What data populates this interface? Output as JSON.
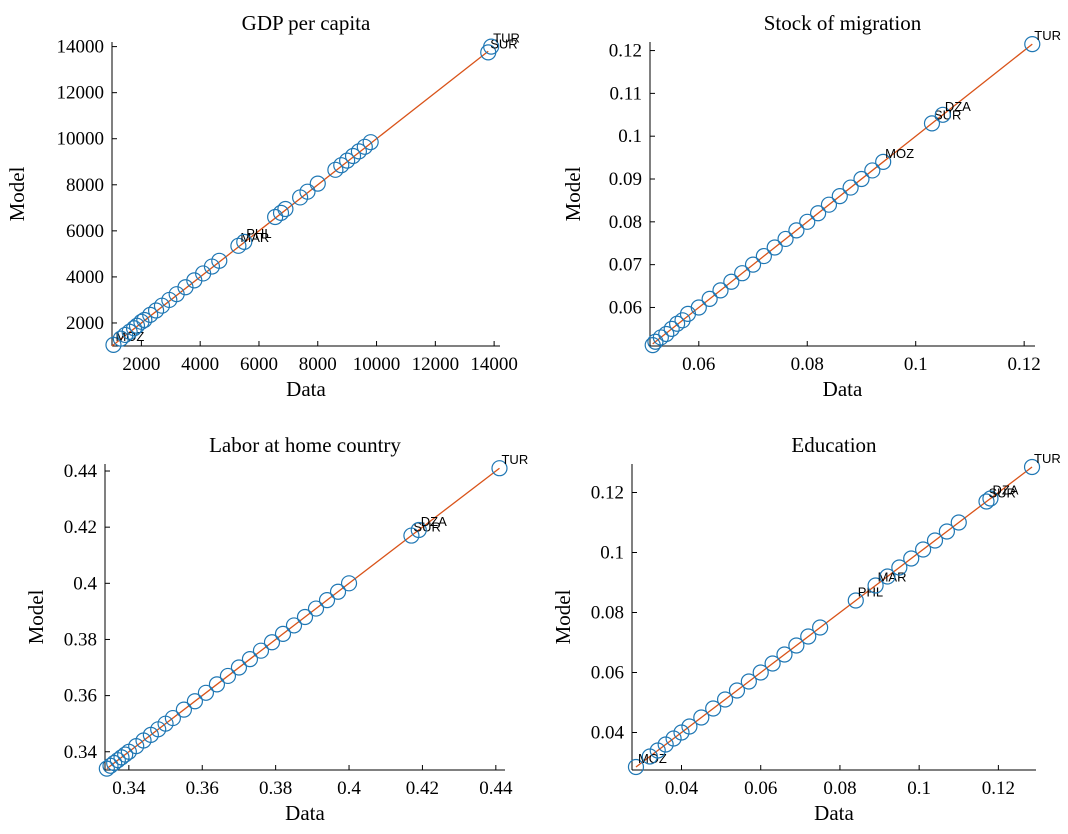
{
  "colors": {
    "marker": "#1f77b4",
    "fit_line": "#d95319",
    "axis": "#000000"
  },
  "chart_data": [
    {
      "type": "scatter",
      "title": "GDP per capita",
      "xlabel": "Data",
      "ylabel": "Model",
      "xlim": [
        1000,
        14200
      ],
      "ylim": [
        1000,
        14200
      ],
      "xticks": [
        2000,
        4000,
        6000,
        8000,
        10000,
        12000,
        14000
      ],
      "yticks": [
        2000,
        4000,
        6000,
        8000,
        10000,
        12000,
        14000
      ],
      "fit_line": [
        [
          1000,
          1000
        ],
        [
          13800,
          13800
        ]
      ],
      "points": [
        {
          "x": 1050,
          "y": 1050,
          "label": "MOZ"
        },
        {
          "x": 1300,
          "y": 1320,
          "label": ""
        },
        {
          "x": 1450,
          "y": 1480,
          "label": ""
        },
        {
          "x": 1600,
          "y": 1620,
          "label": ""
        },
        {
          "x": 1750,
          "y": 1770,
          "label": ""
        },
        {
          "x": 1850,
          "y": 1880,
          "label": ""
        },
        {
          "x": 2000,
          "y": 2050,
          "label": ""
        },
        {
          "x": 2100,
          "y": 2130,
          "label": ""
        },
        {
          "x": 2300,
          "y": 2350,
          "label": ""
        },
        {
          "x": 2500,
          "y": 2540,
          "label": ""
        },
        {
          "x": 2700,
          "y": 2750,
          "label": ""
        },
        {
          "x": 2950,
          "y": 3000,
          "label": ""
        },
        {
          "x": 3200,
          "y": 3250,
          "label": ""
        },
        {
          "x": 3500,
          "y": 3550,
          "label": ""
        },
        {
          "x": 3800,
          "y": 3850,
          "label": ""
        },
        {
          "x": 4100,
          "y": 4150,
          "label": ""
        },
        {
          "x": 4400,
          "y": 4450,
          "label": ""
        },
        {
          "x": 4650,
          "y": 4700,
          "label": ""
        },
        {
          "x": 5300,
          "y": 5350,
          "label": "MAR"
        },
        {
          "x": 5500,
          "y": 5520,
          "label": "PHL"
        },
        {
          "x": 6550,
          "y": 6600,
          "label": ""
        },
        {
          "x": 6750,
          "y": 6780,
          "label": ""
        },
        {
          "x": 6900,
          "y": 6950,
          "label": ""
        },
        {
          "x": 7400,
          "y": 7450,
          "label": ""
        },
        {
          "x": 7650,
          "y": 7700,
          "label": ""
        },
        {
          "x": 8000,
          "y": 8050,
          "label": ""
        },
        {
          "x": 8600,
          "y": 8650,
          "label": ""
        },
        {
          "x": 8800,
          "y": 8850,
          "label": ""
        },
        {
          "x": 9000,
          "y": 9050,
          "label": ""
        },
        {
          "x": 9200,
          "y": 9250,
          "label": ""
        },
        {
          "x": 9400,
          "y": 9450,
          "label": ""
        },
        {
          "x": 9600,
          "y": 9650,
          "label": ""
        },
        {
          "x": 9800,
          "y": 9850,
          "label": ""
        },
        {
          "x": 13800,
          "y": 13750,
          "label": "SUR"
        },
        {
          "x": 13900,
          "y": 14000,
          "label": "TUR"
        }
      ]
    },
    {
      "type": "scatter",
      "title": "Stock of migration",
      "xlabel": "Data",
      "ylabel": "Model",
      "xlim": [
        0.051,
        0.122
      ],
      "ylim": [
        0.051,
        0.122
      ],
      "xticks": [
        0.06,
        0.08,
        0.1,
        0.12
      ],
      "yticks": [
        0.06,
        0.07,
        0.08,
        0.09,
        0.1,
        0.11,
        0.12
      ],
      "fit_line": [
        [
          0.0515,
          0.0515
        ],
        [
          0.1215,
          0.1215
        ]
      ],
      "points": [
        {
          "x": 0.0515,
          "y": 0.0512,
          "label": ""
        },
        {
          "x": 0.052,
          "y": 0.052,
          "label": ""
        },
        {
          "x": 0.053,
          "y": 0.053,
          "label": ""
        },
        {
          "x": 0.054,
          "y": 0.0538,
          "label": ""
        },
        {
          "x": 0.055,
          "y": 0.055,
          "label": ""
        },
        {
          "x": 0.056,
          "y": 0.0562,
          "label": ""
        },
        {
          "x": 0.057,
          "y": 0.057,
          "label": ""
        },
        {
          "x": 0.058,
          "y": 0.0585,
          "label": ""
        },
        {
          "x": 0.06,
          "y": 0.06,
          "label": ""
        },
        {
          "x": 0.062,
          "y": 0.062,
          "label": ""
        },
        {
          "x": 0.064,
          "y": 0.064,
          "label": ""
        },
        {
          "x": 0.066,
          "y": 0.066,
          "label": ""
        },
        {
          "x": 0.068,
          "y": 0.068,
          "label": ""
        },
        {
          "x": 0.07,
          "y": 0.07,
          "label": ""
        },
        {
          "x": 0.072,
          "y": 0.072,
          "label": ""
        },
        {
          "x": 0.074,
          "y": 0.074,
          "label": ""
        },
        {
          "x": 0.076,
          "y": 0.076,
          "label": ""
        },
        {
          "x": 0.078,
          "y": 0.078,
          "label": ""
        },
        {
          "x": 0.08,
          "y": 0.08,
          "label": ""
        },
        {
          "x": 0.082,
          "y": 0.082,
          "label": ""
        },
        {
          "x": 0.084,
          "y": 0.084,
          "label": ""
        },
        {
          "x": 0.086,
          "y": 0.086,
          "label": ""
        },
        {
          "x": 0.088,
          "y": 0.088,
          "label": ""
        },
        {
          "x": 0.09,
          "y": 0.09,
          "label": ""
        },
        {
          "x": 0.092,
          "y": 0.092,
          "label": ""
        },
        {
          "x": 0.094,
          "y": 0.094,
          "label": "MOZ"
        },
        {
          "x": 0.103,
          "y": 0.103,
          "label": "SUR"
        },
        {
          "x": 0.105,
          "y": 0.105,
          "label": "DZA"
        },
        {
          "x": 0.1215,
          "y": 0.1215,
          "label": "TUR"
        }
      ]
    },
    {
      "type": "scatter",
      "title": "Labor at home country",
      "xlabel": "Data",
      "ylabel": "Model",
      "xlim": [
        0.3335,
        0.4425
      ],
      "ylim": [
        0.3335,
        0.4425
      ],
      "xticks": [
        0.34,
        0.36,
        0.38,
        0.4,
        0.42,
        0.44
      ],
      "yticks": [
        0.34,
        0.36,
        0.38,
        0.4,
        0.42,
        0.44
      ],
      "fit_line": [
        [
          0.334,
          0.334
        ],
        [
          0.441,
          0.441
        ]
      ],
      "points": [
        {
          "x": 0.334,
          "y": 0.334,
          "label": ""
        },
        {
          "x": 0.335,
          "y": 0.335,
          "label": ""
        },
        {
          "x": 0.336,
          "y": 0.336,
          "label": ""
        },
        {
          "x": 0.337,
          "y": 0.337,
          "label": ""
        },
        {
          "x": 0.338,
          "y": 0.338,
          "label": ""
        },
        {
          "x": 0.339,
          "y": 0.339,
          "label": ""
        },
        {
          "x": 0.34,
          "y": 0.34,
          "label": ""
        },
        {
          "x": 0.342,
          "y": 0.342,
          "label": ""
        },
        {
          "x": 0.344,
          "y": 0.344,
          "label": ""
        },
        {
          "x": 0.346,
          "y": 0.346,
          "label": ""
        },
        {
          "x": 0.348,
          "y": 0.348,
          "label": ""
        },
        {
          "x": 0.35,
          "y": 0.35,
          "label": ""
        },
        {
          "x": 0.352,
          "y": 0.352,
          "label": ""
        },
        {
          "x": 0.355,
          "y": 0.355,
          "label": ""
        },
        {
          "x": 0.358,
          "y": 0.358,
          "label": ""
        },
        {
          "x": 0.361,
          "y": 0.361,
          "label": ""
        },
        {
          "x": 0.364,
          "y": 0.364,
          "label": ""
        },
        {
          "x": 0.367,
          "y": 0.367,
          "label": ""
        },
        {
          "x": 0.37,
          "y": 0.37,
          "label": ""
        },
        {
          "x": 0.373,
          "y": 0.373,
          "label": ""
        },
        {
          "x": 0.376,
          "y": 0.376,
          "label": ""
        },
        {
          "x": 0.379,
          "y": 0.379,
          "label": ""
        },
        {
          "x": 0.382,
          "y": 0.382,
          "label": ""
        },
        {
          "x": 0.385,
          "y": 0.385,
          "label": ""
        },
        {
          "x": 0.388,
          "y": 0.388,
          "label": ""
        },
        {
          "x": 0.391,
          "y": 0.391,
          "label": ""
        },
        {
          "x": 0.394,
          "y": 0.394,
          "label": ""
        },
        {
          "x": 0.397,
          "y": 0.397,
          "label": ""
        },
        {
          "x": 0.4,
          "y": 0.4,
          "label": ""
        },
        {
          "x": 0.417,
          "y": 0.417,
          "label": "SUR"
        },
        {
          "x": 0.419,
          "y": 0.419,
          "label": "DZA"
        },
        {
          "x": 0.441,
          "y": 0.441,
          "label": "TUR"
        }
      ]
    },
    {
      "type": "scatter",
      "title": "Education",
      "xlabel": "Data",
      "ylabel": "Model",
      "xlim": [
        0.0275,
        0.1295
      ],
      "ylim": [
        0.0275,
        0.1295
      ],
      "xticks": [
        0.04,
        0.06,
        0.08,
        0.1,
        0.12
      ],
      "yticks": [
        0.04,
        0.06,
        0.08,
        0.1,
        0.12
      ],
      "fit_line": [
        [
          0.0285,
          0.0285
        ],
        [
          0.1285,
          0.1285
        ]
      ],
      "points": [
        {
          "x": 0.0285,
          "y": 0.0285,
          "label": "MOZ"
        },
        {
          "x": 0.032,
          "y": 0.032,
          "label": ""
        },
        {
          "x": 0.034,
          "y": 0.034,
          "label": ""
        },
        {
          "x": 0.036,
          "y": 0.036,
          "label": ""
        },
        {
          "x": 0.038,
          "y": 0.038,
          "label": ""
        },
        {
          "x": 0.04,
          "y": 0.04,
          "label": ""
        },
        {
          "x": 0.042,
          "y": 0.042,
          "label": ""
        },
        {
          "x": 0.045,
          "y": 0.045,
          "label": ""
        },
        {
          "x": 0.048,
          "y": 0.048,
          "label": ""
        },
        {
          "x": 0.051,
          "y": 0.051,
          "label": ""
        },
        {
          "x": 0.054,
          "y": 0.054,
          "label": ""
        },
        {
          "x": 0.057,
          "y": 0.057,
          "label": ""
        },
        {
          "x": 0.06,
          "y": 0.06,
          "label": ""
        },
        {
          "x": 0.063,
          "y": 0.063,
          "label": ""
        },
        {
          "x": 0.066,
          "y": 0.066,
          "label": ""
        },
        {
          "x": 0.069,
          "y": 0.069,
          "label": ""
        },
        {
          "x": 0.072,
          "y": 0.072,
          "label": ""
        },
        {
          "x": 0.075,
          "y": 0.075,
          "label": ""
        },
        {
          "x": 0.084,
          "y": 0.084,
          "label": "PHL"
        },
        {
          "x": 0.089,
          "y": 0.089,
          "label": "MAR"
        },
        {
          "x": 0.092,
          "y": 0.092,
          "label": ""
        },
        {
          "x": 0.095,
          "y": 0.095,
          "label": ""
        },
        {
          "x": 0.098,
          "y": 0.098,
          "label": ""
        },
        {
          "x": 0.101,
          "y": 0.101,
          "label": ""
        },
        {
          "x": 0.104,
          "y": 0.104,
          "label": ""
        },
        {
          "x": 0.107,
          "y": 0.107,
          "label": ""
        },
        {
          "x": 0.11,
          "y": 0.11,
          "label": ""
        },
        {
          "x": 0.117,
          "y": 0.117,
          "label": "SUR"
        },
        {
          "x": 0.118,
          "y": 0.118,
          "label": "DZA"
        },
        {
          "x": 0.1285,
          "y": 0.1285,
          "label": "TUR"
        }
      ]
    }
  ]
}
